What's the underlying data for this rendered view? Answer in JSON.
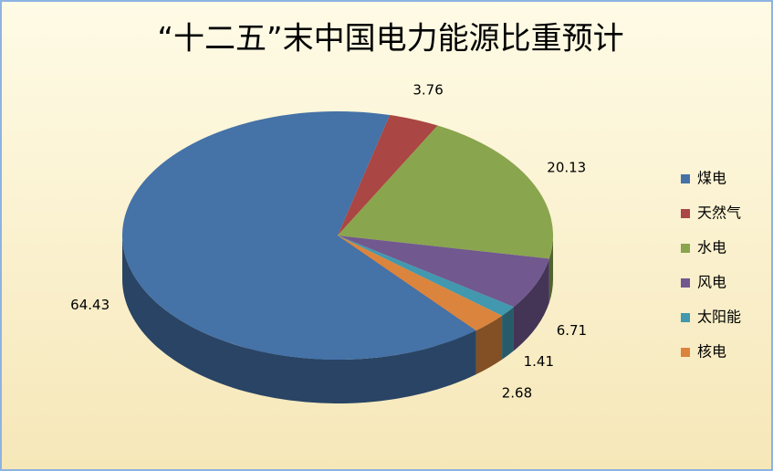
{
  "chart_data": {
    "type": "pie3d",
    "title": "“十二五”末中国电力能源比重预计",
    "categories": [
      "煤电",
      "天然气",
      "水电",
      "风电",
      "太阳能",
      "核电"
    ],
    "values": [
      64.43,
      3.76,
      20.13,
      6.71,
      1.41,
      2.68
    ],
    "colors": [
      "#4572a7",
      "#aa4643",
      "#89a54e",
      "#71588f",
      "#4198af",
      "#db843d"
    ],
    "legend": "right"
  }
}
